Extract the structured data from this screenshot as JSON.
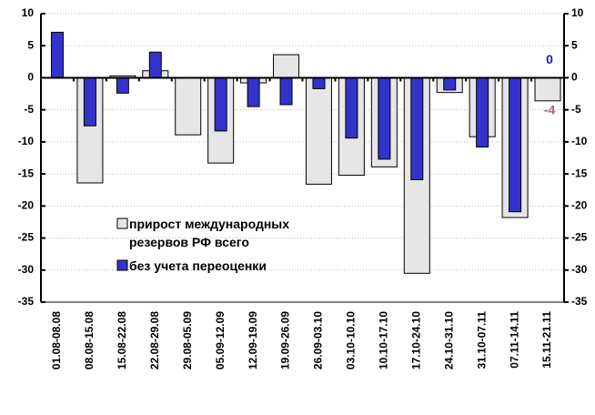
{
  "chart_data": {
    "type": "bar",
    "categories": [
      "01.08-08.08",
      "08.08-15.08",
      "15.08-22.08",
      "22.08-29.08",
      "29.08-05.09",
      "05.09-12.09",
      "12.09-19.09",
      "19.09-26.09",
      "26.09-03.10",
      "03.10-10.10",
      "10.10-17.10",
      "17.10-24.10",
      "24.10-31.10",
      "31.10-07.11",
      "07.11-14.11",
      "15.11-21.11"
    ],
    "series": [
      {
        "name": "прирост международных резервов РФ всего",
        "color": "#e6e6e6",
        "values": [
          0,
          -16.4,
          0.3,
          1.1,
          -8.9,
          -13.3,
          -0.8,
          3.6,
          -16.6,
          -15.2,
          -13.9,
          -30.5,
          -2.3,
          -9.2,
          -21.8,
          -3.6
        ],
        "value_labels": [
          null,
          null,
          null,
          null,
          null,
          null,
          null,
          null,
          null,
          null,
          null,
          null,
          null,
          null,
          null,
          "-4"
        ],
        "label_color": "#a06a6a"
      },
      {
        "name": "без учета переоценки",
        "color": "#3333cc",
        "values": [
          7.1,
          -7.5,
          -2.4,
          4.0,
          null,
          -8.3,
          -4.5,
          -4.2,
          -1.7,
          -9.4,
          -12.7,
          -15.9,
          -1.9,
          -10.8,
          -20.9,
          0
        ],
        "value_labels": [
          null,
          null,
          null,
          null,
          null,
          null,
          null,
          null,
          null,
          null,
          null,
          null,
          null,
          null,
          null,
          "0"
        ],
        "label_color": "#1f1f99"
      }
    ],
    "ylim": [
      -35,
      10
    ],
    "yticks": [
      -35,
      -30,
      -25,
      -20,
      -15,
      -10,
      -5,
      0,
      5,
      10
    ],
    "y2lim": [
      -35,
      10
    ],
    "y2ticks": [
      -35,
      -30,
      -25,
      -20,
      -15,
      -10,
      -5,
      0,
      5,
      10
    ],
    "grid": true
  }
}
